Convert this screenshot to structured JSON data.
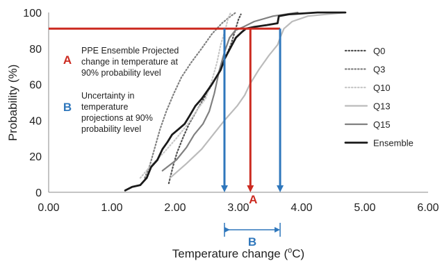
{
  "chart_data": {
    "type": "line",
    "xlabel": "Temperature change (",
    "xlabel_sup": "o",
    "xlabel_tail": "C)",
    "ylabel": "Probability (%)",
    "xlim": [
      0,
      6
    ],
    "ylim": [
      0,
      100
    ],
    "x_ticks": [
      "0.00",
      "1.00",
      "2.00",
      "3.00",
      "4.00",
      "5.00",
      "6.00"
    ],
    "y_ticks": [
      "0",
      "20",
      "40",
      "60",
      "80",
      "100"
    ],
    "grid": false,
    "legend_position": "right",
    "series": [
      {
        "name": "Q0",
        "color": "#505050",
        "style": "dotted",
        "points": [
          [
            1.9,
            5
          ],
          [
            1.97,
            15
          ],
          [
            2.03,
            22
          ],
          [
            2.12,
            30
          ],
          [
            2.22,
            38
          ],
          [
            2.35,
            46
          ],
          [
            2.45,
            52
          ],
          [
            2.55,
            58
          ],
          [
            2.68,
            66
          ],
          [
            2.78,
            74
          ],
          [
            2.88,
            82
          ],
          [
            2.95,
            90
          ],
          [
            3.0,
            96
          ],
          [
            3.04,
            99
          ]
        ]
      },
      {
        "name": "Q3",
        "color": "#808080",
        "style": "dotted",
        "points": [
          [
            1.52,
            8
          ],
          [
            1.6,
            15
          ],
          [
            1.68,
            25
          ],
          [
            1.76,
            35
          ],
          [
            1.86,
            45
          ],
          [
            1.98,
            55
          ],
          [
            2.1,
            64
          ],
          [
            2.25,
            72
          ],
          [
            2.42,
            80
          ],
          [
            2.58,
            88
          ],
          [
            2.74,
            94
          ],
          [
            2.88,
            98
          ],
          [
            2.96,
            100
          ]
        ]
      },
      {
        "name": "Q10",
        "color": "#c8c8c8",
        "style": "dotted",
        "points": [
          [
            1.45,
            8
          ],
          [
            1.62,
            15
          ],
          [
            1.82,
            22
          ],
          [
            2.02,
            30
          ],
          [
            2.2,
            38
          ],
          [
            2.35,
            46
          ],
          [
            2.48,
            52
          ],
          [
            2.58,
            62
          ],
          [
            2.66,
            72
          ],
          [
            2.72,
            82
          ],
          [
            2.79,
            90
          ],
          [
            2.84,
            97
          ],
          [
            2.88,
            100
          ]
        ]
      },
      {
        "name": "Q13",
        "color": "#bbbbbb",
        "style": "solid",
        "points": [
          [
            1.92,
            8
          ],
          [
            2.18,
            16
          ],
          [
            2.42,
            24
          ],
          [
            2.6,
            32
          ],
          [
            2.78,
            40
          ],
          [
            2.98,
            48
          ],
          [
            3.1,
            54
          ],
          [
            3.18,
            60
          ],
          [
            3.32,
            68
          ],
          [
            3.48,
            76
          ],
          [
            3.62,
            82
          ],
          [
            3.66,
            86
          ],
          [
            3.72,
            91
          ],
          [
            3.85,
            95
          ],
          [
            4.1,
            98
          ],
          [
            4.7,
            100
          ]
        ]
      },
      {
        "name": "Q15",
        "color": "#808080",
        "style": "solid",
        "points": [
          [
            1.8,
            12
          ],
          [
            2.02,
            18
          ],
          [
            2.18,
            25
          ],
          [
            2.3,
            32
          ],
          [
            2.44,
            38
          ],
          [
            2.54,
            45
          ],
          [
            2.62,
            55
          ],
          [
            2.7,
            68
          ],
          [
            2.78,
            78
          ],
          [
            2.86,
            86
          ],
          [
            2.95,
            90
          ],
          [
            3.08,
            92
          ],
          [
            3.25,
            95
          ],
          [
            3.55,
            98
          ],
          [
            3.94,
            100
          ]
        ]
      },
      {
        "name": "Ensemble",
        "color": "#1a1a1a",
        "style": "solid",
        "points": [
          [
            1.21,
            1
          ],
          [
            1.32,
            3
          ],
          [
            1.45,
            4
          ],
          [
            1.55,
            8
          ],
          [
            1.62,
            14
          ],
          [
            1.72,
            18
          ],
          [
            1.8,
            24
          ],
          [
            1.88,
            28
          ],
          [
            1.95,
            32
          ],
          [
            2.05,
            35
          ],
          [
            2.15,
            38
          ],
          [
            2.22,
            42
          ],
          [
            2.32,
            48
          ],
          [
            2.42,
            52
          ],
          [
            2.5,
            56
          ],
          [
            2.58,
            60
          ],
          [
            2.65,
            64
          ],
          [
            2.72,
            68
          ],
          [
            2.78,
            74
          ],
          [
            2.84,
            78
          ],
          [
            2.9,
            82
          ],
          [
            2.96,
            86
          ],
          [
            3.05,
            89
          ],
          [
            3.12,
            91
          ],
          [
            3.25,
            92
          ],
          [
            3.45,
            93
          ],
          [
            3.62,
            94
          ],
          [
            3.64,
            98
          ],
          [
            3.8,
            99
          ],
          [
            4.25,
            100
          ],
          [
            4.69,
            100
          ]
        ]
      }
    ],
    "reference_lines": {
      "probability_90_line": {
        "y": 91,
        "x_from": 0,
        "x_to": 3.66,
        "color": "#cc2a20"
      },
      "arrow_A": {
        "x": 3.19,
        "y_from": 91,
        "y_to": 0,
        "color": "#cc2a20"
      },
      "arrow_B_left": {
        "x": 2.78,
        "y_from": 91,
        "y_to": 0,
        "color": "#2f77bc"
      },
      "arrow_B_right": {
        "x": 3.66,
        "y_from": 91,
        "y_to": 0,
        "color": "#2f77bc"
      },
      "bracket_B": {
        "x_from": 2.78,
        "x_to": 3.66,
        "color": "#2f77bc"
      }
    },
    "annotations": {
      "A": {
        "letter": "A",
        "color": "#cc2a20",
        "lines": [
          "PPE Ensemble Projected",
          "change in temperature at",
          "90% probability level"
        ]
      },
      "B": {
        "letter": "B",
        "color": "#2f77bc",
        "lines": [
          "Uncertainty in",
          "temperature",
          "projections at 90%",
          "probability level"
        ]
      },
      "marker_A": "A",
      "marker_B": "B"
    }
  }
}
